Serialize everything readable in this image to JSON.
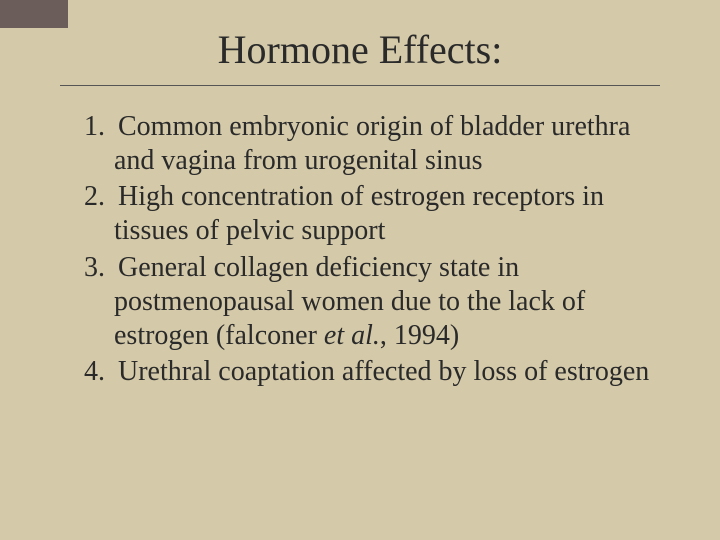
{
  "slide": {
    "title": "Hormone Effects:",
    "background_color": "#d4c9a8",
    "corner_accent_color": "#6b5d5a",
    "text_color": "#2a2a2a",
    "title_fontsize": 40,
    "body_fontsize": 28,
    "divider_color": "#555555",
    "items": [
      {
        "text": "Common embryonic origin of bladder urethra and vagina from urogenital sinus"
      },
      {
        "text": "High concentration of estrogen receptors in tissues of pelvic support"
      },
      {
        "prefix": "General collagen deficiency state in postmenopausal women due to the lack of estrogen (falconer ",
        "italic": "et al.",
        "suffix": ", 1994)"
      },
      {
        "text": "Urethral coaptation affected by loss of estrogen"
      }
    ]
  }
}
